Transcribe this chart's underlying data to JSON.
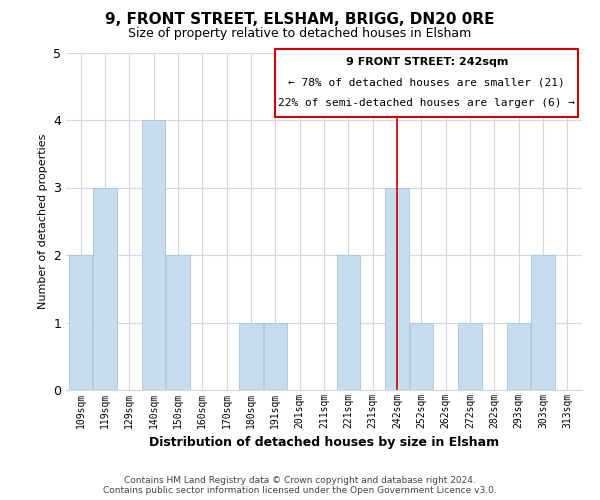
{
  "title": "9, FRONT STREET, ELSHAM, BRIGG, DN20 0RE",
  "subtitle": "Size of property relative to detached houses in Elsham",
  "xlabel": "Distribution of detached houses by size in Elsham",
  "ylabel": "Number of detached properties",
  "categories": [
    "109sqm",
    "119sqm",
    "129sqm",
    "140sqm",
    "150sqm",
    "160sqm",
    "170sqm",
    "180sqm",
    "191sqm",
    "201sqm",
    "211sqm",
    "221sqm",
    "231sqm",
    "242sqm",
    "252sqm",
    "262sqm",
    "272sqm",
    "282sqm",
    "293sqm",
    "303sqm",
    "313sqm"
  ],
  "values": [
    2,
    3,
    0,
    4,
    2,
    0,
    0,
    1,
    1,
    0,
    0,
    2,
    0,
    3,
    1,
    0,
    1,
    0,
    1,
    2,
    0
  ],
  "highlight_index": 13,
  "bar_color": "#c8dcf0",
  "bar_edge_color": "#a0bcd8",
  "highlight_line_color": "#cc0000",
  "ylim": [
    0,
    5
  ],
  "yticks": [
    0,
    1,
    2,
    3,
    4,
    5
  ],
  "annotation_title": "9 FRONT STREET: 242sqm",
  "annotation_line1": "← 78% of detached houses are smaller (21)",
  "annotation_line2": "22% of semi-detached houses are larger (6) →",
  "footer_line1": "Contains HM Land Registry data © Crown copyright and database right 2024.",
  "footer_line2": "Contains public sector information licensed under the Open Government Licence v3.0.",
  "background_color": "#ffffff",
  "grid_color": "#d0d8e8"
}
